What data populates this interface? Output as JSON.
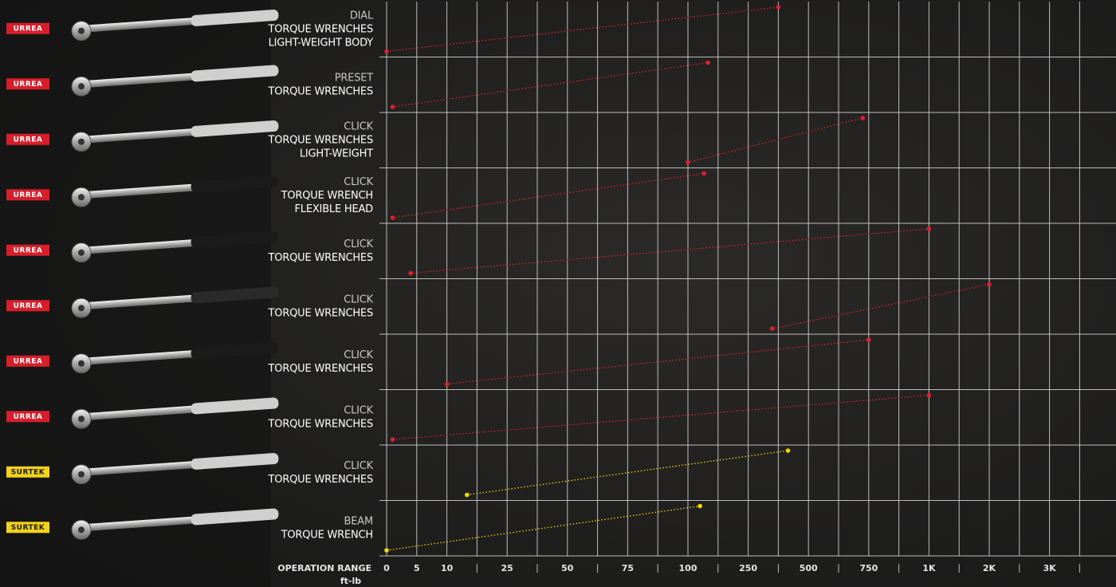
{
  "chart_data": {
    "type": "range",
    "x_label": "OPERATION RANGE",
    "x_unit": "ft-lb",
    "xlim": [
      0,
      3500
    ],
    "xticks": [
      0,
      5,
      10,
      {
        "value": 17.5,
        "label": null
      },
      25,
      {
        "value": 37.5,
        "label": null
      },
      50,
      {
        "value": 62.5,
        "label": null
      },
      75,
      {
        "value": 87.5,
        "label": null
      },
      100,
      {
        "value": 175,
        "label": null
      },
      250,
      {
        "value": 375,
        "label": null
      },
      500,
      {
        "value": 625,
        "label": null
      },
      750,
      {
        "value": 875,
        "label": null
      },
      {
        "value": 1000,
        "label": "1K"
      },
      {
        "value": 1500,
        "label": null
      },
      {
        "value": 2000,
        "label": "2K"
      },
      {
        "value": 2500,
        "label": null
      },
      {
        "value": 3000,
        "label": "3K"
      },
      {
        "value": 3500,
        "label": null
      }
    ],
    "grid": true,
    "rows": [
      {
        "brand": "URREA",
        "logo_color": "#d71f2b",
        "label": [
          "DIAL",
          "TORQUE WRENCHES",
          "LIGHT-WEIGHT BODY"
        ],
        "min": 0,
        "max": 375,
        "color": "#e0202c"
      },
      {
        "brand": "URREA",
        "logo_color": "#d71f2b",
        "label": [
          "PRESET",
          "TORQUE WRENCHES"
        ],
        "min": 1,
        "max": 150,
        "color": "#e0202c"
      },
      {
        "brand": "URREA",
        "logo_color": "#d71f2b",
        "label": [
          "CLICK",
          "TORQUE WRENCHES",
          "LIGHT-WEIGHT"
        ],
        "min": 100,
        "max": 725,
        "color": "#e0202c"
      },
      {
        "brand": "URREA",
        "logo_color": "#d71f2b",
        "label": [
          "CLICK",
          "TORQUE WRENCH",
          "FLEXIBLE HEAD"
        ],
        "min": 1,
        "max": 140,
        "color": "#e0202c"
      },
      {
        "brand": "URREA",
        "logo_color": "#d71f2b",
        "label": [
          "CLICK",
          "TORQUE WRENCHES"
        ],
        "min": 4,
        "max": 1000,
        "color": "#e0202c"
      },
      {
        "brand": "URREA",
        "logo_color": "#d71f2b",
        "label": [
          "CLICK",
          "TORQUE WRENCHES"
        ],
        "min": 350,
        "max": 2000,
        "color": "#e0202c"
      },
      {
        "brand": "URREA",
        "logo_color": "#d71f2b",
        "label": [
          "CLICK",
          "TORQUE WRENCHES"
        ],
        "min": 10,
        "max": 750,
        "color": "#e0202c"
      },
      {
        "brand": "URREA",
        "logo_color": "#d71f2b",
        "label": [
          "CLICK",
          "TORQUE WRENCHES"
        ],
        "min": 1,
        "max": 1000,
        "color": "#e0202c"
      },
      {
        "brand": "SURTEK",
        "logo_color": "#f2d21a",
        "label": [
          "CLICK",
          "TORQUE WRENCHES"
        ],
        "min": 15,
        "max": 415,
        "color": "#f5d800"
      },
      {
        "brand": "SURTEK",
        "logo_color": "#f2d21a",
        "label": [
          "BEAM",
          "TORQUE WRENCH"
        ],
        "min": 0,
        "max": 130,
        "color": "#f5d800"
      }
    ]
  }
}
